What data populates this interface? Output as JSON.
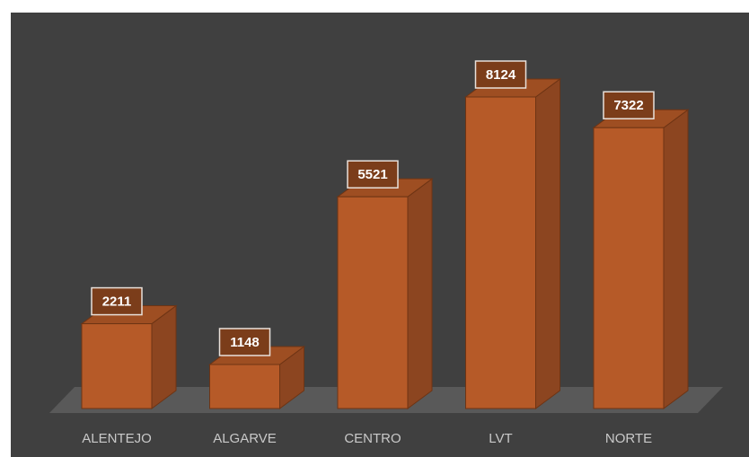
{
  "chart_data": {
    "type": "bar3d",
    "categories": [
      "ALENTEJO",
      "ALGARVE",
      "CENTRO",
      "LVT",
      "NORTE"
    ],
    "values": [
      2211,
      1148,
      5521,
      8124,
      7322
    ],
    "color": "#b65a28"
  }
}
